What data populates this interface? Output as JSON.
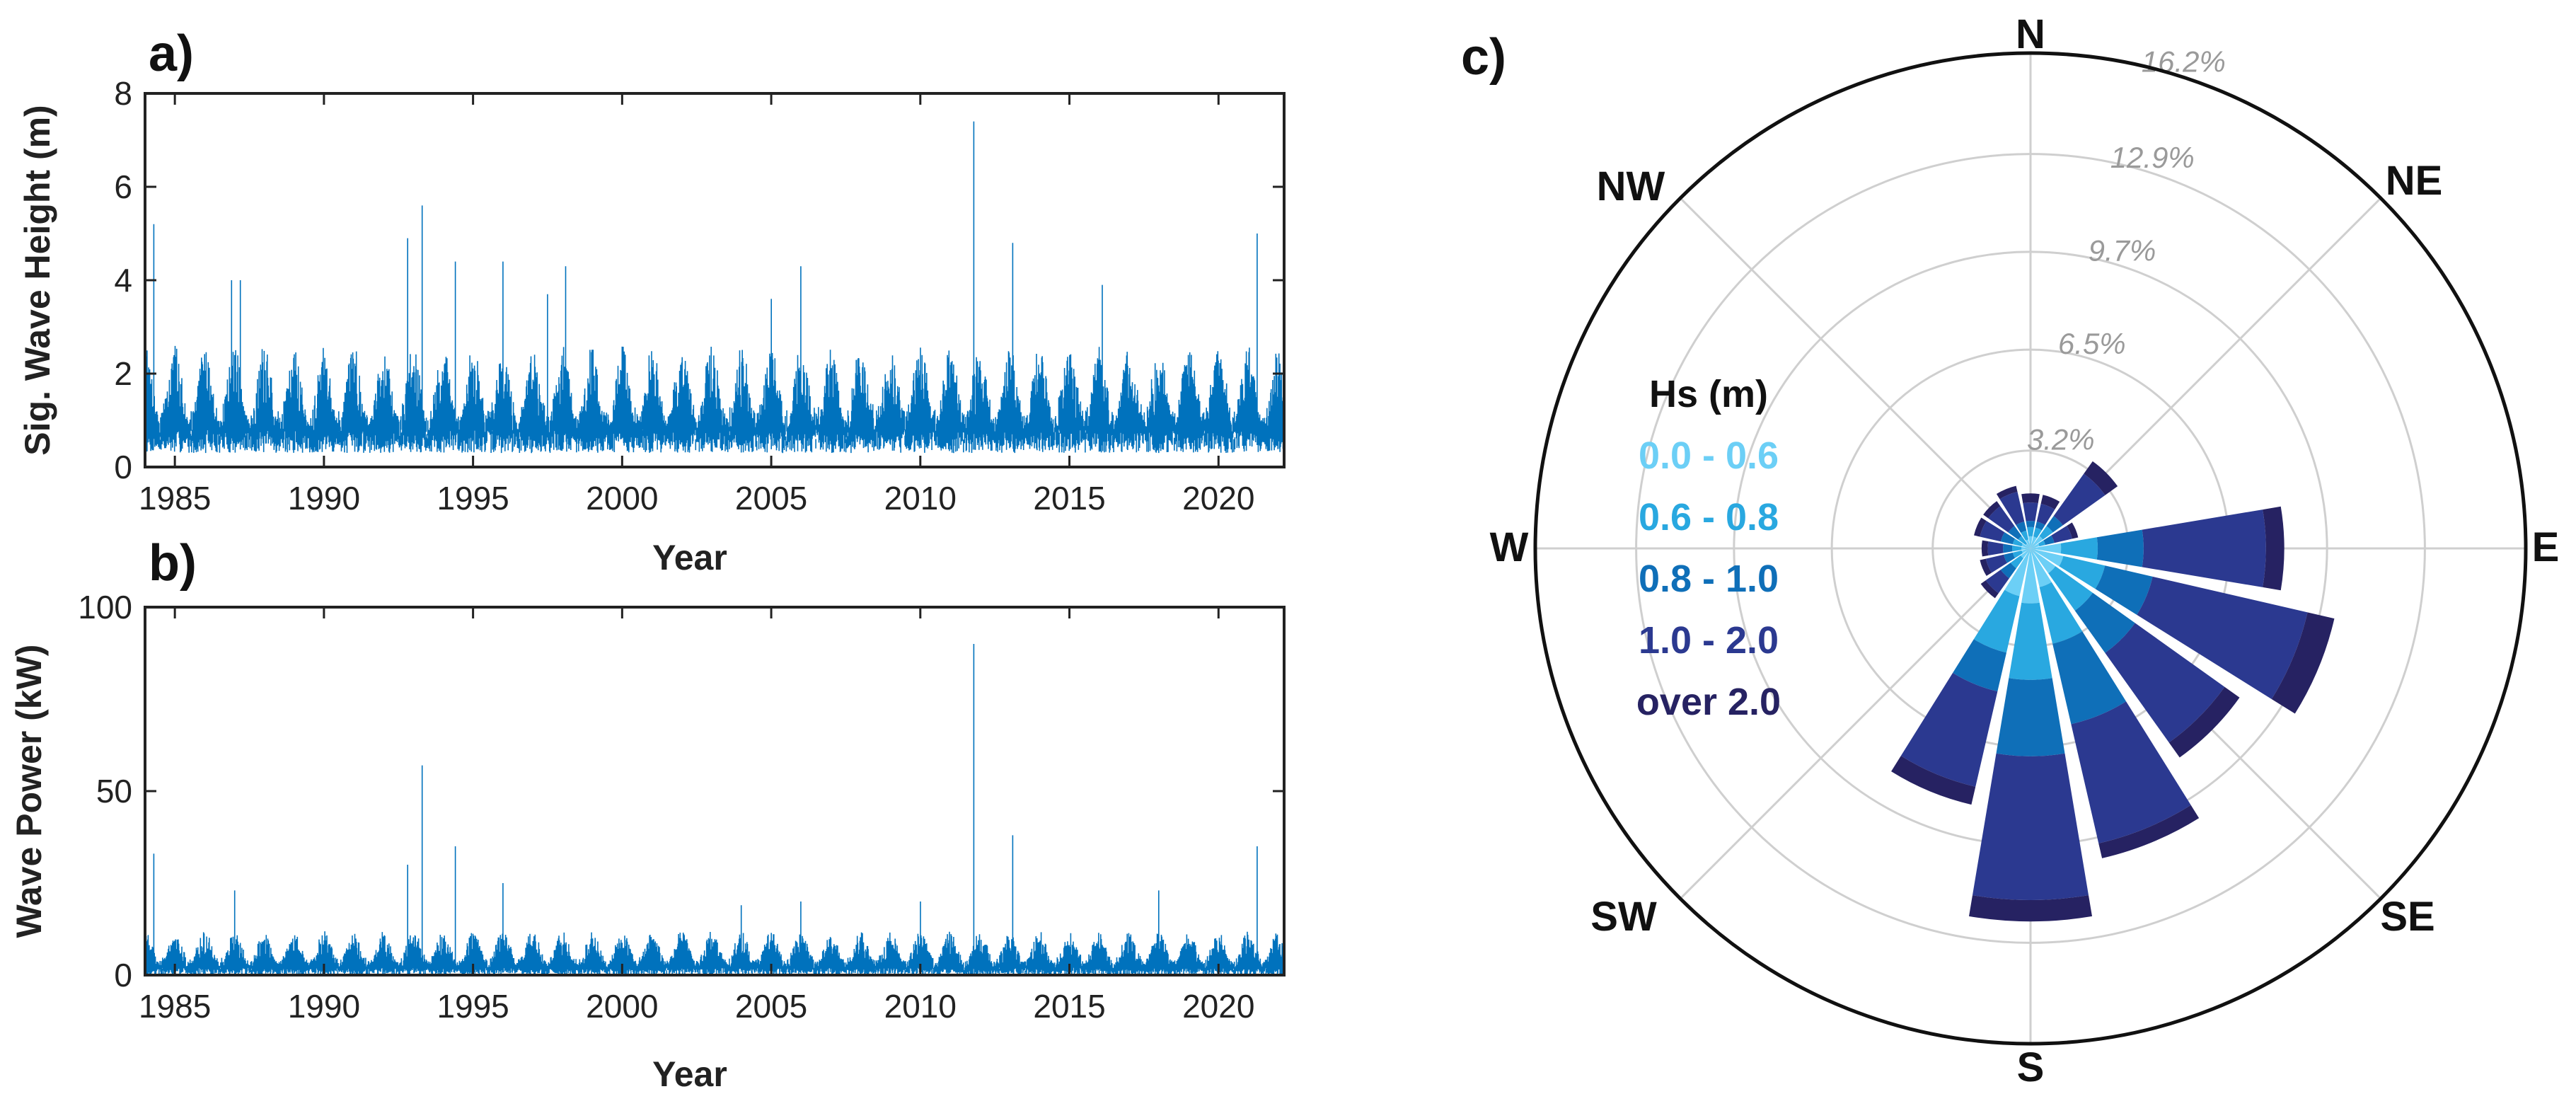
{
  "colors": {
    "series": "#0072BD",
    "axis": "#222222",
    "grid": "#cfcfcf",
    "ring_label": "#9a9a9a",
    "bins": [
      "#6ccff6",
      "#29a8e0",
      "#0f6fb8",
      "#2b3990",
      "#262262"
    ]
  },
  "chart_data": [
    {
      "type": "line",
      "panel_label": "a)",
      "title": "",
      "xlabel": "Year",
      "ylabel": "Sig. Wave Height (m)",
      "xlim": [
        1984,
        2022.2
      ],
      "ylim": [
        0,
        8
      ],
      "xticks": [
        1985,
        1990,
        1995,
        2000,
        2005,
        2010,
        2015,
        2020
      ],
      "yticks": [
        0,
        2,
        4,
        6,
        8
      ],
      "series": [
        {
          "name": "Significant wave height",
          "baseline": [
            0.3,
            0.8
          ],
          "typical_max": 2.6,
          "peaks": [
            {
              "x": 1984.3,
              "y": 5.2
            },
            {
              "x": 1986.9,
              "y": 4.0
            },
            {
              "x": 1987.2,
              "y": 4.0
            },
            {
              "x": 1992.8,
              "y": 4.9
            },
            {
              "x": 1993.3,
              "y": 5.6
            },
            {
              "x": 1994.4,
              "y": 4.4
            },
            {
              "x": 1996.0,
              "y": 4.4
            },
            {
              "x": 1997.5,
              "y": 3.7
            },
            {
              "x": 1998.1,
              "y": 4.3
            },
            {
              "x": 2005.0,
              "y": 3.6
            },
            {
              "x": 2006.0,
              "y": 4.3
            },
            {
              "x": 2011.8,
              "y": 7.4
            },
            {
              "x": 2013.1,
              "y": 4.8
            },
            {
              "x": 2016.1,
              "y": 3.9
            },
            {
              "x": 2021.3,
              "y": 5.0
            }
          ]
        }
      ]
    },
    {
      "type": "line",
      "panel_label": "b)",
      "title": "",
      "xlabel": "Year",
      "ylabel": "Wave Power (kW)",
      "xlim": [
        1984,
        2022.2
      ],
      "ylim": [
        0,
        100
      ],
      "xticks": [
        1985,
        1990,
        1995,
        2000,
        2005,
        2010,
        2015,
        2020
      ],
      "yticks": [
        0,
        50,
        100
      ],
      "series": [
        {
          "name": "Wave power",
          "baseline": [
            0,
            2
          ],
          "typical_max": 12,
          "peaks": [
            {
              "x": 1984.3,
              "y": 33
            },
            {
              "x": 1987.0,
              "y": 23
            },
            {
              "x": 1992.8,
              "y": 30
            },
            {
              "x": 1993.3,
              "y": 57
            },
            {
              "x": 1994.4,
              "y": 35
            },
            {
              "x": 1996.0,
              "y": 25
            },
            {
              "x": 2004.0,
              "y": 19
            },
            {
              "x": 2006.0,
              "y": 20
            },
            {
              "x": 2010.0,
              "y": 20
            },
            {
              "x": 2011.8,
              "y": 90
            },
            {
              "x": 2013.1,
              "y": 38
            },
            {
              "x": 2018.0,
              "y": 23
            },
            {
              "x": 2021.3,
              "y": 35
            }
          ]
        }
      ]
    },
    {
      "type": "windrose",
      "panel_label": "c)",
      "title": "",
      "directions": [
        "N",
        "NE",
        "E",
        "SE",
        "S",
        "SW",
        "W",
        "NW"
      ],
      "ring_labels": [
        "3.2%",
        "6.5%",
        "9.7%",
        "12.9%",
        "16.2%"
      ],
      "ring_values": [
        3.2,
        6.5,
        9.7,
        12.9,
        16.2
      ],
      "rmax": 16.2,
      "legend_title": "Hs (m)",
      "bins": [
        "0.0 - 0.6",
        "0.6 - 0.8",
        "0.8 - 1.0",
        "1.0 - 2.0",
        "over 2.0"
      ],
      "sectors": [
        {
          "dir": 0,
          "counts": [
            0.4,
            0.3,
            0.2,
            0.6,
            0.3
          ]
        },
        {
          "dir": 22.5,
          "counts": [
            0.4,
            0.3,
            0.2,
            0.6,
            0.3
          ]
        },
        {
          "dir": 45,
          "counts": [
            0.5,
            0.4,
            0.4,
            1.7,
            0.5
          ]
        },
        {
          "dir": 67.5,
          "counts": [
            0.3,
            0.2,
            0.3,
            0.6,
            0.2
          ]
        },
        {
          "dir": 90,
          "counts": [
            1.0,
            1.2,
            1.5,
            4.0,
            0.6
          ]
        },
        {
          "dir": 112.5,
          "counts": [
            1.1,
            1.4,
            1.6,
            5.2,
            0.9
          ]
        },
        {
          "dir": 135,
          "counts": [
            1.0,
            1.5,
            1.7,
            3.6,
            0.6
          ]
        },
        {
          "dir": 157.5,
          "counts": [
            1.3,
            1.9,
            2.7,
            4.0,
            0.5
          ]
        },
        {
          "dir": 180,
          "counts": [
            1.8,
            2.5,
            2.5,
            4.7,
            0.7
          ]
        },
        {
          "dir": 202.5,
          "counts": [
            1.6,
            1.9,
            1.3,
            3.2,
            0.6
          ]
        },
        {
          "dir": 225,
          "counts": [
            0.4,
            0.4,
            0.4,
            0.6,
            0.2
          ]
        },
        {
          "dir": 247.5,
          "counts": [
            0.3,
            0.3,
            0.3,
            0.6,
            0.2
          ]
        },
        {
          "dir": 270,
          "counts": [
            0.3,
            0.3,
            0.3,
            0.5,
            0.2
          ]
        },
        {
          "dir": 292.5,
          "counts": [
            0.3,
            0.3,
            0.4,
            0.7,
            0.2
          ]
        },
        {
          "dir": 315,
          "counts": [
            0.2,
            0.3,
            0.4,
            0.8,
            0.2
          ]
        },
        {
          "dir": 337.5,
          "counts": [
            0.3,
            0.3,
            0.3,
            1.0,
            0.2
          ]
        }
      ]
    }
  ]
}
